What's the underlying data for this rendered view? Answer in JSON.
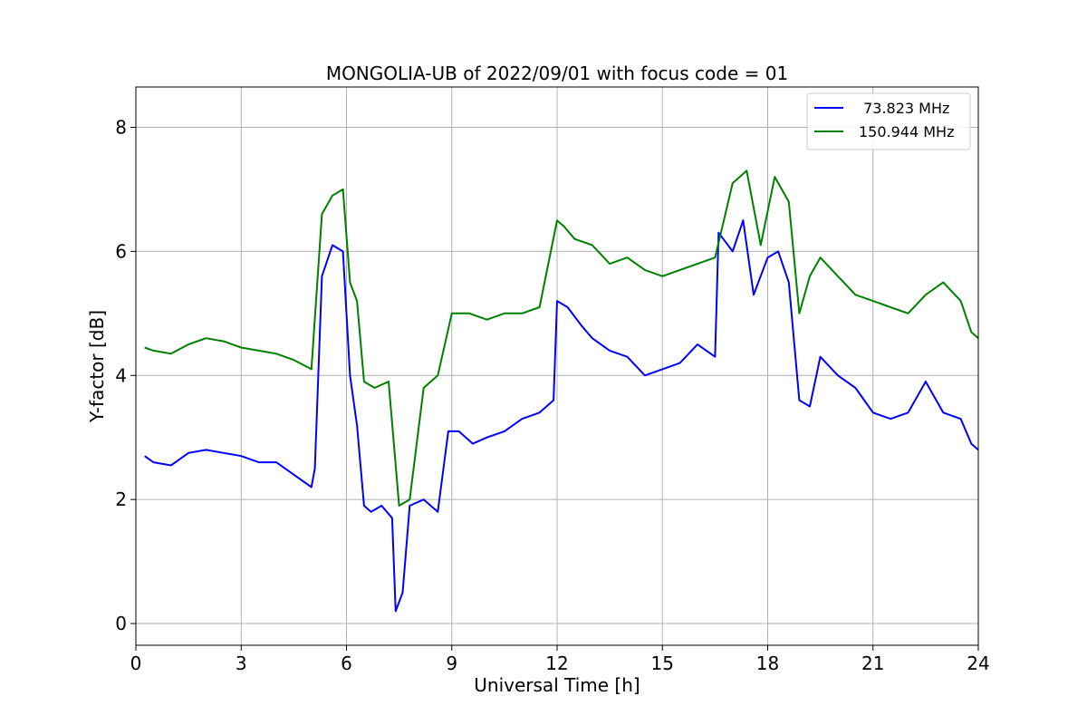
{
  "chart_data": {
    "type": "line",
    "title": "MONGOLIA-UB of 2022/09/01 with focus code = 01",
    "xlabel": "Universal Time [h]",
    "ylabel": "Y-factor [dB]",
    "xlim": [
      0,
      24
    ],
    "ylim": [
      -0.35,
      8.65
    ],
    "xticks": [
      0,
      3,
      6,
      9,
      12,
      15,
      18,
      21,
      24
    ],
    "yticks": [
      0,
      2,
      4,
      6,
      8
    ],
    "grid": true,
    "legend_position": "top-right",
    "series": [
      {
        "name": " 73.823 MHz",
        "color": "#0000ff",
        "x": [
          0.25,
          0.5,
          1.0,
          1.5,
          2.0,
          2.5,
          3.0,
          3.5,
          4.0,
          4.5,
          5.0,
          5.1,
          5.3,
          5.6,
          5.9,
          6.1,
          6.3,
          6.5,
          6.7,
          7.0,
          7.3,
          7.4,
          7.6,
          7.8,
          8.2,
          8.6,
          8.9,
          9.2,
          9.6,
          10.0,
          10.5,
          11.0,
          11.5,
          11.9,
          12.0,
          12.3,
          12.7,
          13.0,
          13.5,
          14.0,
          14.5,
          15.0,
          15.5,
          16.0,
          16.5,
          16.6,
          17.0,
          17.3,
          17.6,
          18.0,
          18.3,
          18.6,
          18.9,
          19.2,
          19.5,
          20.0,
          20.5,
          21.0,
          21.5,
          22.0,
          22.5,
          23.0,
          23.5,
          23.8,
          24.0
        ],
        "y": [
          2.7,
          2.6,
          2.55,
          2.75,
          2.8,
          2.75,
          2.7,
          2.6,
          2.6,
          2.4,
          2.2,
          2.5,
          5.6,
          6.1,
          6.0,
          4.0,
          3.2,
          1.9,
          1.8,
          1.9,
          1.7,
          0.2,
          0.5,
          1.9,
          2.0,
          1.8,
          3.1,
          3.1,
          2.9,
          3.0,
          3.1,
          3.3,
          3.4,
          3.6,
          5.2,
          5.1,
          4.8,
          4.6,
          4.4,
          4.3,
          4.0,
          4.1,
          4.2,
          4.5,
          4.3,
          6.3,
          6.0,
          6.5,
          5.3,
          5.9,
          6.0,
          5.5,
          3.6,
          3.5,
          4.3,
          4.0,
          3.8,
          3.4,
          3.3,
          3.4,
          3.9,
          3.4,
          3.3,
          2.9,
          2.8
        ]
      },
      {
        "name": "150.944 MHz",
        "color": "#008000",
        "x": [
          0.25,
          0.5,
          1.0,
          1.5,
          2.0,
          2.5,
          3.0,
          3.5,
          4.0,
          4.5,
          5.0,
          5.3,
          5.6,
          5.9,
          6.1,
          6.3,
          6.5,
          6.8,
          7.2,
          7.5,
          7.8,
          8.2,
          8.6,
          9.0,
          9.5,
          10.0,
          10.5,
          11.0,
          11.5,
          12.0,
          12.2,
          12.5,
          13.0,
          13.5,
          14.0,
          14.5,
          15.0,
          15.5,
          16.0,
          16.5,
          17.0,
          17.4,
          17.8,
          18.2,
          18.6,
          18.9,
          19.2,
          19.5,
          20.0,
          20.5,
          21.0,
          21.5,
          22.0,
          22.5,
          23.0,
          23.5,
          23.8,
          24.0
        ],
        "y": [
          4.45,
          4.4,
          4.35,
          4.5,
          4.6,
          4.55,
          4.45,
          4.4,
          4.35,
          4.25,
          4.1,
          6.6,
          6.9,
          7.0,
          5.5,
          5.2,
          3.9,
          3.8,
          3.9,
          1.9,
          2.0,
          3.8,
          4.0,
          5.0,
          5.0,
          4.9,
          5.0,
          5.0,
          5.1,
          6.5,
          6.4,
          6.2,
          6.1,
          5.8,
          5.9,
          5.7,
          5.6,
          5.7,
          5.8,
          5.9,
          7.1,
          7.3,
          6.1,
          7.2,
          6.8,
          5.0,
          5.6,
          5.9,
          5.6,
          5.3,
          5.2,
          5.1,
          5.0,
          5.3,
          5.5,
          5.2,
          4.7,
          4.6
        ]
      }
    ]
  }
}
